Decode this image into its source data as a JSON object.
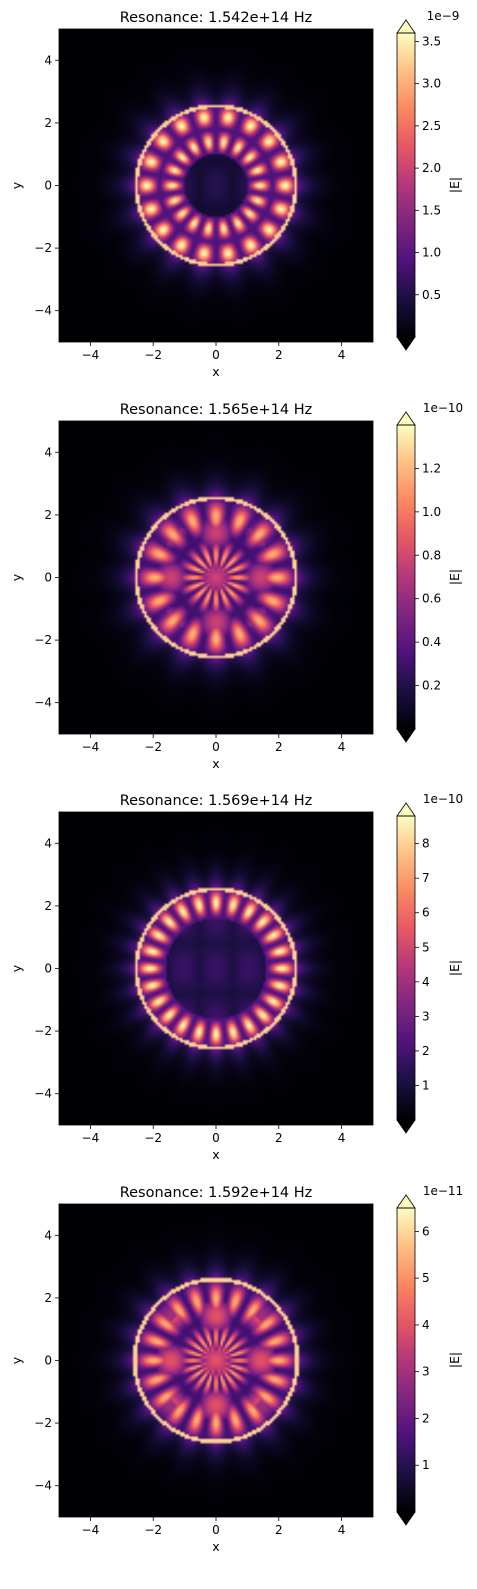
{
  "chart_data": [
    {
      "type": "heatmap",
      "title": "Resonance: 1.542e+14 Hz",
      "xlabel": "x",
      "ylabel": "y",
      "xlim": [
        -5,
        5
      ],
      "ylim": [
        -5,
        5
      ],
      "xticks": [
        "−4",
        "−2",
        "0",
        "2",
        "4"
      ],
      "yticks": [
        "−4",
        "−2",
        "0",
        "2",
        "4"
      ],
      "colormap": "magma",
      "colorbar": {
        "label": "|E|",
        "offset_text": "1e−9",
        "range": [
          0,
          3.6
        ],
        "ticks": [
          "0.5",
          "1.0",
          "1.5",
          "2.0",
          "2.5",
          "3.0",
          "3.5"
        ],
        "tick_values": [
          0.5,
          1.0,
          1.5,
          2.0,
          2.5,
          3.0,
          3.5
        ],
        "extend": "both"
      },
      "pattern": {
        "ring_inner": 1.0,
        "ring_outer": 2.6,
        "lobes": 18,
        "center_level": 0.15,
        "peak": 3.5
      }
    },
    {
      "type": "heatmap",
      "title": "Resonance: 1.565e+14 Hz",
      "xlabel": "x",
      "ylabel": "y",
      "xlim": [
        -5,
        5
      ],
      "ylim": [
        -5,
        5
      ],
      "xticks": [
        "−4",
        "−2",
        "0",
        "2",
        "4"
      ],
      "yticks": [
        "−4",
        "−2",
        "0",
        "2",
        "4"
      ],
      "colormap": "magma",
      "colorbar": {
        "label": "|E|",
        "offset_text": "1e−10",
        "range": [
          0,
          1.4
        ],
        "ticks": [
          "0.2",
          "0.4",
          "0.6",
          "0.8",
          "1.0",
          "1.2"
        ],
        "tick_values": [
          0.2,
          0.4,
          0.6,
          0.8,
          1.0,
          1.2
        ],
        "extend": "both"
      },
      "pattern": {
        "ring_inner": 0.0,
        "ring_outer": 2.6,
        "lobes": 16,
        "center_level": 0.4,
        "peak": 1.35
      }
    },
    {
      "type": "heatmap",
      "title": "Resonance: 1.569e+14 Hz",
      "xlabel": "x",
      "ylabel": "y",
      "xlim": [
        -5,
        5
      ],
      "ylim": [
        -5,
        5
      ],
      "xticks": [
        "−4",
        "−2",
        "0",
        "2",
        "4"
      ],
      "yticks": [
        "−4",
        "−2",
        "0",
        "2",
        "4"
      ],
      "colormap": "magma",
      "colorbar": {
        "label": "|E|",
        "offset_text": "1e−10",
        "range": [
          0,
          8.8
        ],
        "ticks": [
          "1",
          "2",
          "3",
          "4",
          "5",
          "6",
          "7",
          "8"
        ],
        "tick_values": [
          1,
          2,
          3,
          4,
          5,
          6,
          7,
          8
        ],
        "extend": "both"
      },
      "pattern": {
        "ring_inner": 1.6,
        "ring_outer": 2.6,
        "lobes": 24,
        "center_level": 0.2,
        "peak": 8.5
      }
    },
    {
      "type": "heatmap",
      "title": "Resonance: 1.592e+14 Hz",
      "xlabel": "x",
      "ylabel": "y",
      "xlim": [
        -5,
        5
      ],
      "ylim": [
        -5,
        5
      ],
      "xticks": [
        "−4",
        "−2",
        "0",
        "2",
        "4"
      ],
      "yticks": [
        "−4",
        "−2",
        "0",
        "2",
        "4"
      ],
      "colormap": "magma",
      "colorbar": {
        "label": "|E|",
        "offset_text": "1e−11",
        "range": [
          0,
          6.5
        ],
        "ticks": [
          "1",
          "2",
          "3",
          "4",
          "5",
          "6"
        ],
        "tick_values": [
          1,
          2,
          3,
          4,
          5,
          6
        ],
        "extend": "both"
      },
      "pattern": {
        "ring_inner": 0.0,
        "ring_outer": 2.65,
        "lobes": 20,
        "center_level": 0.45,
        "peak": 6.2
      }
    }
  ]
}
